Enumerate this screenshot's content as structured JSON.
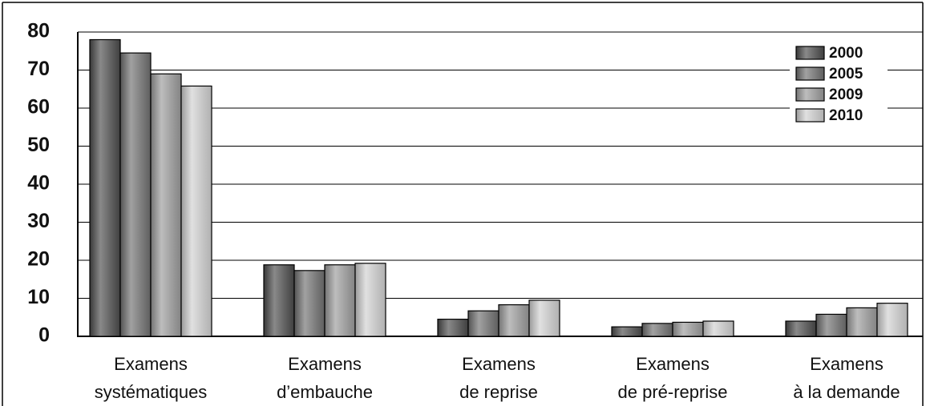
{
  "chart_data": {
    "type": "bar",
    "categories": [
      [
        "Examens",
        "systématiques"
      ],
      [
        "Examens",
        "d’embauche"
      ],
      [
        "Examens",
        "de reprise"
      ],
      [
        "Examens",
        "de pré-reprise"
      ],
      [
        "Examens",
        "à la demande"
      ]
    ],
    "series": [
      {
        "name": "2000",
        "color": "#4a4a4a",
        "values": [
          78,
          18.8,
          4.5,
          2.5,
          4
        ]
      },
      {
        "name": "2005",
        "color": "#6e6e6e",
        "values": [
          74.5,
          17.3,
          6.7,
          3.4,
          5.8
        ]
      },
      {
        "name": "2009",
        "color": "#9a9a9a",
        "values": [
          69,
          18.8,
          8.3,
          3.7,
          7.5
        ]
      },
      {
        "name": "2010",
        "color": "#cfcfcf",
        "values": [
          65.8,
          19.2,
          9.5,
          4,
          8.7
        ]
      }
    ],
    "ylim": [
      0,
      80
    ],
    "yticks": [
      0,
      10,
      20,
      30,
      40,
      50,
      60,
      70,
      80
    ],
    "grid": true,
    "legend": "top-right"
  }
}
